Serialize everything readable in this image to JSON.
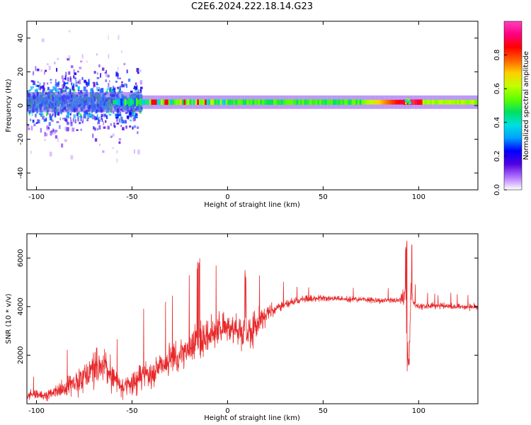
{
  "title": "C2E6.2024.222.18.14.G23",
  "chart_data": [
    {
      "type": "heatmap",
      "name": "spectrogram",
      "xlabel": "Height of straight line (km)",
      "ylabel": "Frequency (Hz)",
      "xlim": [
        -105,
        131
      ],
      "ylim": [
        -50,
        50
      ],
      "xticks": [
        -100,
        -50,
        0,
        50,
        100
      ],
      "yticks": [
        -40,
        -20,
        0,
        20,
        40
      ],
      "colorbar": {
        "label": "Normalized spectral amplitude",
        "range": [
          0,
          1
        ],
        "ticks": [
          0.0,
          0.2,
          0.4,
          0.6,
          0.8
        ],
        "tick_labels": [
          "0.0",
          "0.2",
          "0.4",
          "0.6",
          "0.8"
        ],
        "colormap": [
          "#ffffff",
          "#b070ff",
          "#5000e0",
          "#0000ff",
          "#00a0ff",
          "#00e0e0",
          "#00e060",
          "#60ff00",
          "#c0ff00",
          "#ffd000",
          "#ff6000",
          "#ff0000",
          "#ff0080",
          "#ff40c0"
        ]
      },
      "signal_band": {
        "center_hz": 2,
        "scattered_region_x": [
          -105,
          -45
        ],
        "noise_spread_hz": [
          -50,
          50
        ]
      }
    },
    {
      "type": "line",
      "name": "snr",
      "xlabel": "Height of straight line (km)",
      "ylabel": "SNR (10 * v/v)",
      "xlim": [
        -105,
        131
      ],
      "ylim": [
        0,
        7000
      ],
      "xticks": [
        -100,
        -50,
        0,
        50,
        100
      ],
      "yticks": [
        2000,
        4000,
        6000
      ],
      "color": "#e8282a",
      "x": [
        -105,
        -100,
        -95,
        -90,
        -85,
        -80,
        -75,
        -70,
        -65,
        -60,
        -55,
        -50,
        -45,
        -40,
        -35,
        -30,
        -25,
        -20,
        -18,
        -16,
        -14,
        -12,
        -10,
        -5,
        0,
        5,
        8,
        10,
        12,
        15,
        20,
        25,
        30,
        35,
        40,
        50,
        60,
        70,
        80,
        90,
        92,
        93,
        94,
        95,
        96,
        97,
        100,
        110,
        120,
        131
      ],
      "y": [
        300,
        400,
        350,
        500,
        600,
        900,
        1200,
        1500,
        1600,
        1100,
        700,
        800,
        1100,
        1300,
        1600,
        1700,
        1900,
        2200,
        2500,
        2600,
        2600,
        2700,
        2800,
        3000,
        3200,
        3100,
        2900,
        3000,
        2900,
        3200,
        3700,
        3900,
        4100,
        4200,
        4300,
        4350,
        4300,
        4300,
        4250,
        4250,
        4400,
        4700,
        2000,
        1500,
        4800,
        4200,
        4000,
        4050,
        4000,
        4000
      ],
      "spread": [
        300,
        350,
        350,
        400,
        600,
        900,
        1100,
        1300,
        1100,
        900,
        700,
        800,
        900,
        1000,
        1100,
        1100,
        1200,
        1200,
        1300,
        1400,
        1500,
        1100,
        1100,
        1000,
        1000,
        1100,
        1200,
        1300,
        1200,
        1000,
        600,
        400,
        300,
        250,
        250,
        200,
        200,
        200,
        200,
        200,
        600,
        900,
        1200,
        900,
        900,
        400,
        250,
        200,
        200,
        200
      ]
    }
  ]
}
